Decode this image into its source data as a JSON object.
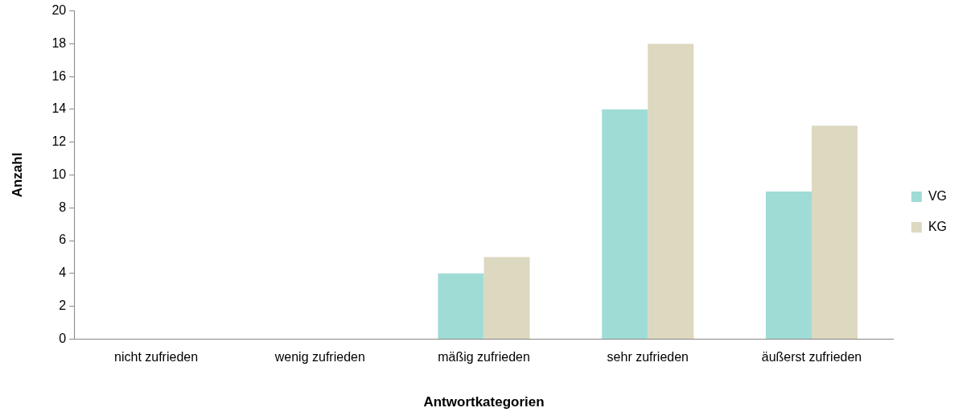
{
  "chart_data": {
    "type": "bar",
    "xlabel": "Antwortkategorien",
    "ylabel": "Anzahl",
    "categories": [
      "nicht zufrieden",
      "wenig zufrieden",
      "mäßig zufrieden",
      "sehr zufrieden",
      "äußerst zufrieden"
    ],
    "series": [
      {
        "name": "VG",
        "color": "#a0dcd6",
        "values": [
          0,
          0,
          4,
          14,
          9
        ]
      },
      {
        "name": "KG",
        "color": "#ddd8c0",
        "values": [
          0,
          0,
          5,
          18,
          13
        ]
      }
    ],
    "ylim": [
      0,
      20
    ],
    "yticks": [
      0,
      2,
      4,
      6,
      8,
      10,
      12,
      14,
      16,
      18,
      20
    ],
    "grid": false,
    "legend": "right"
  }
}
